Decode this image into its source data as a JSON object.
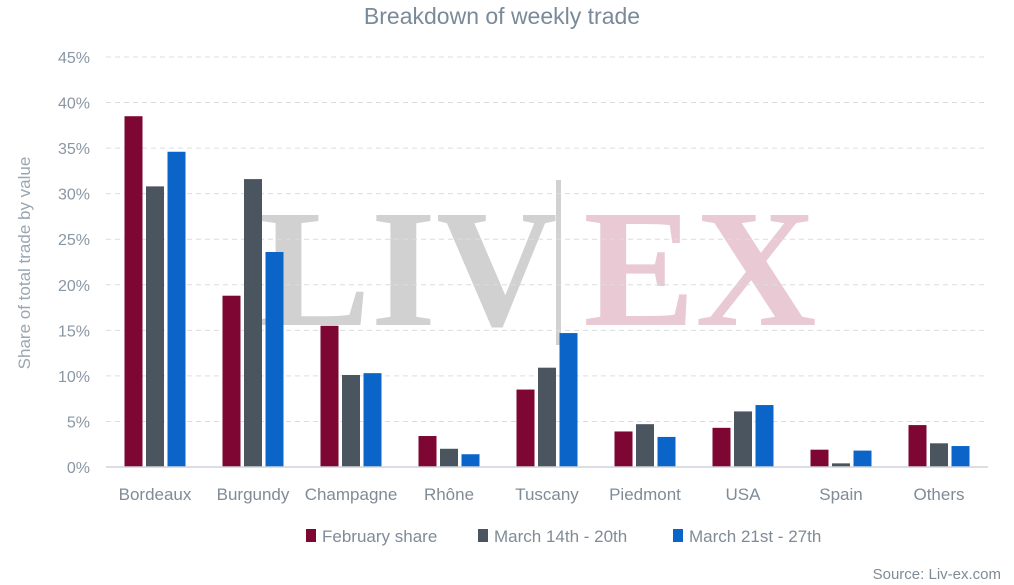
{
  "chart_data": {
    "type": "bar",
    "title": "Breakdown of weekly trade",
    "ylabel": "Share of total trade by value",
    "xlabel": "",
    "ylim": [
      0,
      45
    ],
    "y_tick_labels": [
      "0%",
      "5%",
      "10%",
      "15%",
      "20%",
      "25%",
      "30%",
      "35%",
      "40%",
      "45%"
    ],
    "grid": true,
    "legend_position": "bottom",
    "categories": [
      "Bordeaux",
      "Burgundy",
      "Champagne",
      "Rhône",
      "Tuscany",
      "Piedmont",
      "USA",
      "Spain",
      "Others"
    ],
    "series": [
      {
        "name": "February share",
        "color": "#7d0632",
        "values": [
          38.5,
          18.8,
          15.5,
          3.4,
          8.5,
          3.9,
          4.3,
          1.9,
          4.6
        ]
      },
      {
        "name": "March 14th - 20th",
        "color": "#4a5560",
        "values": [
          30.8,
          31.6,
          10.1,
          2.0,
          10.9,
          4.7,
          6.1,
          0.4,
          2.6
        ]
      },
      {
        "name": "March 21st - 27th",
        "color": "#0b64c8",
        "values": [
          34.6,
          23.6,
          10.3,
          1.4,
          14.7,
          3.3,
          6.8,
          1.8,
          2.3
        ]
      }
    ],
    "source": "Source: Liv-ex.com",
    "watermark": {
      "left": "LIV",
      "right": "EX"
    }
  }
}
